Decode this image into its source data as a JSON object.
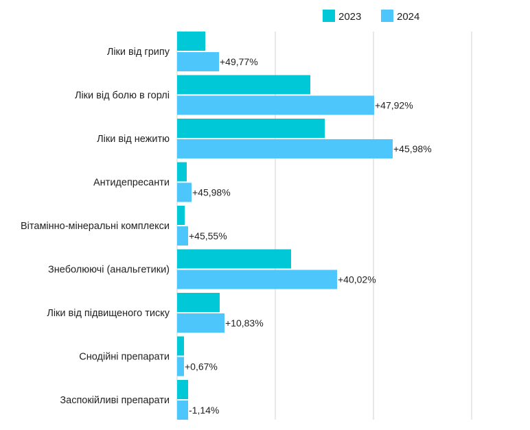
{
  "chart_data": {
    "type": "bar",
    "orientation": "horizontal",
    "grid": true,
    "legend_position": "top-right",
    "categories": [
      "Ліки від грипу",
      "Ліки від болю в горлі",
      "Ліки від нежитю",
      "Антидепресанти",
      "Вітамінно-мінеральні комплекси",
      "Знеболюючі (анальгетики)",
      "Ліки від підвищеного тиску",
      "Снодійні препарати",
      "Заспокійливі препарати"
    ],
    "series": [
      {
        "name": "2023",
        "color": "#00c8d6",
        "values": [
          41,
          194,
          215,
          14,
          11,
          166,
          62,
          10,
          16
        ]
      },
      {
        "name": "2024",
        "color": "#4cc6fb",
        "values": [
          61,
          287,
          314,
          21,
          16,
          233,
          69,
          10,
          16
        ]
      }
    ],
    "data_labels": [
      "+49,77%",
      "+47,92%",
      "+45,98%",
      "+45,98%",
      "+45,55%",
      "+40,02%",
      "+10,83%",
      "+0,67%",
      "-1,14%"
    ],
    "xlim": [
      0,
      360
    ]
  }
}
